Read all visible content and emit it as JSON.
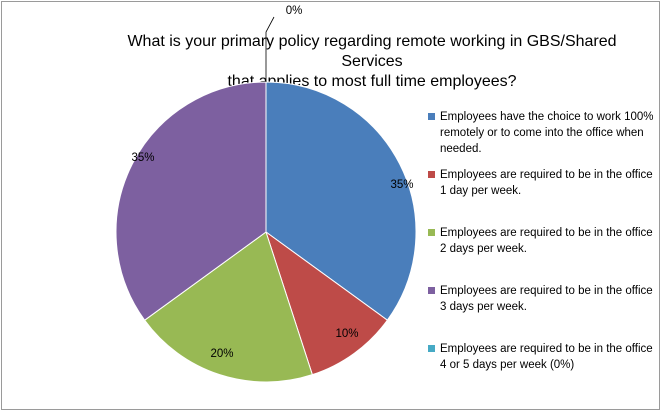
{
  "chart_data": {
    "type": "pie",
    "title_lines": [
      "What is your primary policy regarding remote working in GBS/Shared Services",
      "that applies to most full time employees?"
    ],
    "slices": [
      {
        "label": "Employees have the choice to work 100% remotely or to come into the office when needed.",
        "value": 35,
        "data_label": "35%",
        "color": "#4a7ebb"
      },
      {
        "label": "Employees are required to be in the office 1 day per week.",
        "value": 10,
        "data_label": "10%",
        "color": "#be4b48"
      },
      {
        "label": "Employees are required to be in the office 2 days per week.",
        "value": 20,
        "data_label": "20%",
        "color": "#98b954"
      },
      {
        "label": "Employees are required to be in the office 3 days per week.",
        "value": 35,
        "data_label": "35%",
        "color": "#7d60a0"
      },
      {
        "label": "Employees are required to be in the office 4 or 5 days per week (0%)",
        "value": 0,
        "data_label": "0%",
        "color": "#46aac5"
      }
    ],
    "start_angle": "12 o'clock",
    "direction": "clockwise",
    "legend_position": "right"
  }
}
